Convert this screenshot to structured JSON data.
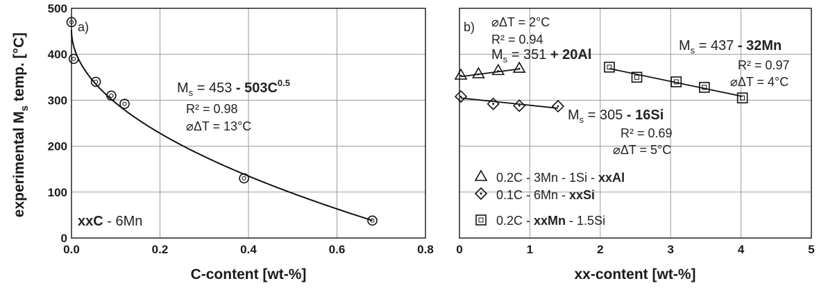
{
  "ylabel_main": "experimental M",
  "ylabel_sub": "s",
  "ylabel_tail": " temp. [°C]",
  "chart_data": [
    {
      "type": "scatter",
      "panel_label": "a)",
      "xlabel": "C-content [wt-%]",
      "xlim": [
        0,
        0.8
      ],
      "ylim": [
        0,
        500
      ],
      "xticks": [
        "0.0",
        "0.2",
        "0.4",
        "0.6",
        "0.8"
      ],
      "yticks": [
        "0",
        "100",
        "200",
        "300",
        "400",
        "500"
      ],
      "grid": true,
      "series": [
        {
          "name": "xxC - 6Mn",
          "label_bold": "xxC",
          "label_rest": " - 6Mn",
          "marker": "circle",
          "points": [
            [
              0.0,
              470
            ],
            [
              0.005,
              390
            ],
            [
              0.055,
              340
            ],
            [
              0.09,
              310
            ],
            [
              0.12,
              292
            ],
            [
              0.39,
              130
            ],
            [
              0.68,
              38
            ]
          ]
        }
      ],
      "fit": {
        "a": 453,
        "b": 503,
        "exp": 0.5
      },
      "equation": {
        "ms": "M",
        "ms_sub": "s",
        "plain": " = 453 ",
        "bold": "- 503C",
        "sup": "0.5"
      },
      "r2": "R² = 0.98",
      "dt": "⌀ΔT = 13°C"
    },
    {
      "type": "scatter",
      "panel_label": "b)",
      "xlabel": "xx-content [wt-%]",
      "xlim": [
        0,
        5
      ],
      "ylim": [
        0,
        500
      ],
      "xticks": [
        "0",
        "1",
        "2",
        "3",
        "4",
        "5"
      ],
      "grid": true,
      "series": [
        {
          "name": "0.2C - 3Mn - 1Si - xxAl",
          "legend_plain": "0.2C - 3Mn - 1Si - ",
          "legend_bold": "xxAl",
          "legend_tail": "",
          "marker": "triangle",
          "points": [
            [
              0.02,
              355
            ],
            [
              0.27,
              358
            ],
            [
              0.55,
              365
            ],
            [
              0.85,
              370
            ]
          ],
          "fit": {
            "a": 351,
            "b": 20
          }
        },
        {
          "name": "0.1C - 6Mn - xxSi",
          "legend_plain": "0.1C - 6Mn - ",
          "legend_bold": "xxSi",
          "legend_tail": "",
          "marker": "diamond",
          "points": [
            [
              0.02,
              308
            ],
            [
              0.48,
              292
            ],
            [
              0.85,
              288
            ],
            [
              1.4,
              287
            ]
          ],
          "fit": {
            "a": 305,
            "b": -16
          }
        },
        {
          "name": "0.2C - xxMn - 1.5Si",
          "legend_plain": "0.2C - ",
          "legend_bold": "xxMn",
          "legend_tail": " - 1.5Si",
          "marker": "square",
          "points": [
            [
              2.13,
              372
            ],
            [
              2.52,
              350
            ],
            [
              3.08,
              340
            ],
            [
              3.48,
              328
            ],
            [
              4.02,
              305
            ]
          ],
          "fit": {
            "a": 437,
            "b": -32
          }
        }
      ],
      "annotations": {
        "al": {
          "dt": "⌀ΔT = 2°C",
          "r2": "R² = 0.94",
          "ms": "M",
          "ms_sub": "s",
          "plain": " = 351 ",
          "bold": "+ 20Al"
        },
        "mn": {
          "ms": "M",
          "ms_sub": "s",
          "plain": " = 437 ",
          "bold": "- 32Mn",
          "r2": "R² = 0.97",
          "dt": "⌀ΔT = 4°C"
        },
        "si": {
          "ms": "M",
          "ms_sub": "s",
          "plain": " = 305 ",
          "bold": "- 16Si",
          "r2": "R² = 0.69",
          "dt": "⌀ΔT = 5°C"
        }
      }
    }
  ]
}
